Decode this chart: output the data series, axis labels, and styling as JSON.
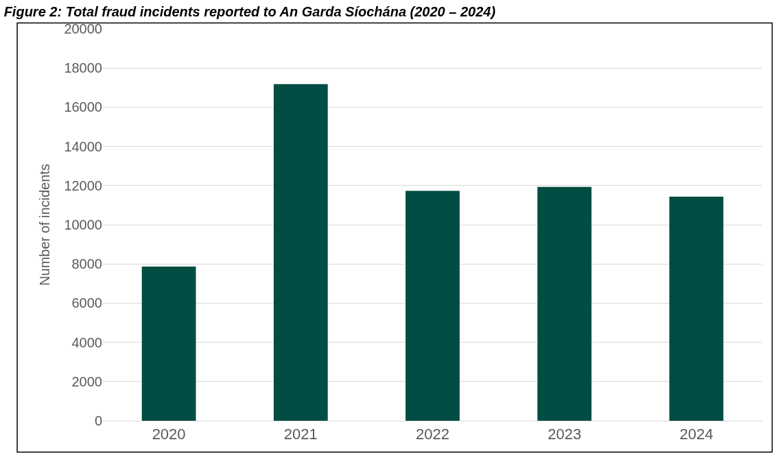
{
  "chart_data": {
    "type": "bar",
    "title": "Figure 2: Total fraud incidents reported to An Garda Síochána (2020 – 2024)",
    "ylabel": "Number of incidents",
    "categories": [
      "2020",
      "2021",
      "2022",
      "2023",
      "2024"
    ],
    "series": [
      {
        "color": "#004d43",
        "values": [
          7870,
          17180,
          11730,
          11930,
          11430
        ]
      }
    ],
    "ylim": [
      0,
      20000
    ],
    "yticks": [
      0,
      2000,
      4000,
      6000,
      8000,
      10000,
      12000,
      14000,
      16000,
      18000,
      20000
    ],
    "grid": "y"
  }
}
